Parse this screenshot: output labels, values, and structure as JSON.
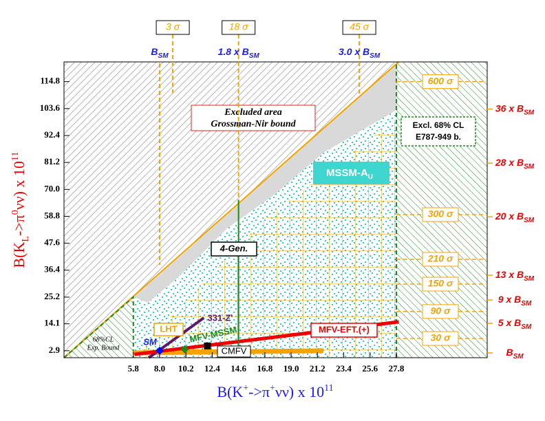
{
  "chart_data": {
    "type": "scatter",
    "xlabel": [
      {
        "text": "B(K"
      },
      {
        "text": "+",
        "shift": "super"
      },
      {
        "text": "->π"
      },
      {
        "text": "+",
        "shift": "super"
      },
      {
        "text": "νν) x 10"
      },
      {
        "text": "11",
        "shift": "super"
      }
    ],
    "ylabel": [
      {
        "text": "B(K"
      },
      {
        "text": "L",
        "shift": "sub"
      },
      {
        "text": "->π"
      },
      {
        "text": "0",
        "shift": "super"
      },
      {
        "text": "νν) x 10"
      },
      {
        "text": "11",
        "shift": "super"
      }
    ],
    "xlim": [
      0,
      35.4
    ],
    "ylim": [
      0,
      123
    ],
    "xticks": [
      5.8,
      {
        "value": 8,
        "label": "8.0"
      },
      10.2,
      12.4,
      14.6,
      16.8,
      {
        "value": 19,
        "label": "19.0"
      },
      21.2,
      23.4,
      25.6,
      27.8
    ],
    "yticks": [
      2.9,
      14.1,
      25.2,
      36.4,
      47.6,
      58.8,
      {
        "value": 70,
        "label": "70.0"
      },
      81.2,
      92.4,
      103.6,
      114.8
    ],
    "bounds": [
      {
        "x": [
          0,
          28
        ],
        "values": [
          0,
          123
        ],
        "color": "#f5a300",
        "dash": false
      },
      {
        "x": [
          0,
          5.8,
          5.8
        ],
        "values": [
          0,
          25.2,
          0
        ],
        "color": "#1e8a1e",
        "dash": true
      },
      {
        "x": [
          27.8,
          27.8
        ],
        "values": [
          0,
          123
        ],
        "color": "#1e8a1e",
        "dash": true
      }
    ],
    "series": [
      {
        "name": "SM",
        "color": "#0000ff",
        "marker": "diamond",
        "x": [
          8.0
        ],
        "values": [
          2.9
        ]
      },
      {
        "name": "MFV-MSSM",
        "color": "#1e8a1e",
        "marker": "diamond",
        "x": [
          10.1
        ],
        "values": [
          3.5
        ]
      },
      {
        "name": "CMFV",
        "color": "#000000",
        "marker": "square",
        "x": [
          12.0
        ],
        "values": [
          4.9
        ]
      }
    ],
    "lines": [
      {
        "name": "LHT",
        "color": "#f5a300",
        "width": 7,
        "x": [
          5.8,
          21.7
        ],
        "values": [
          2.0,
          2.9
        ]
      },
      {
        "name": "331-Z'",
        "color": "#5b1a6e",
        "width": 4,
        "x": [
          7.1,
          11.7
        ],
        "values": [
          0,
          16.6
        ]
      },
      {
        "name": "MFV-EFT.(+)",
        "color": "#ee0000",
        "width": 5,
        "x": [
          5.9,
          28
        ],
        "values": [
          1.4,
          14.9
        ]
      },
      {
        "name": "4-Gen.",
        "color": "#1e8a1e",
        "width": 2,
        "x": [
          14.6,
          14.6
        ],
        "values": [
          0,
          65.7
        ]
      }
    ],
    "sigma_levels": [
      {
        "label": "600 σ",
        "y": 114.8
      },
      {
        "label": "300 σ",
        "y": 59.5
      },
      {
        "label": "210 σ",
        "y": 40.9
      },
      {
        "label": "150 σ",
        "y": 30.6
      },
      {
        "label": "90 σ",
        "y": 19.2
      },
      {
        "label": "30 σ",
        "y": 8.0
      }
    ],
    "enhancement_levels": [
      {
        "text": "36 x B",
        "sub": "SM",
        "y": 103.4
      },
      {
        "text": "28 x B",
        "sub": "SM",
        "y": 80.9
      },
      {
        "text": "20 x B",
        "sub": "SM",
        "y": 58.6
      },
      {
        "text": "13 x B",
        "sub": "SM",
        "y": 34.3
      },
      {
        "text": "9 x B",
        "sub": "SM",
        "y": 24.0
      },
      {
        "text": "5 x B",
        "sub": "SM",
        "y": 14.3
      },
      {
        "text": "B",
        "sub": "SM",
        "y": 2.0
      }
    ],
    "top_sigma": [
      {
        "label": "3 σ",
        "x": 9.1
      },
      {
        "label": "18 σ",
        "x": 14.6
      },
      {
        "label": "45 σ",
        "x": 24.7
      }
    ],
    "top_levels": [
      {
        "text": "B",
        "sub": "SM",
        "x": 8.0
      },
      {
        "text": "1.8 x B",
        "sub": "SM",
        "x": 14.6
      },
      {
        "text": "3.0 x B",
        "sub": "SM",
        "x": 24.7
      }
    ],
    "annotations": {
      "excluded": [
        "Excluded area",
        "Grossman-Nir bound"
      ],
      "e787": [
        "Excl.  68% CL",
        "E787-949 b."
      ],
      "mssm": {
        "text": "MSSM-A",
        "sub": "U"
      },
      "exp_bound": [
        "68%CL",
        "Exp. Bound"
      ]
    }
  }
}
